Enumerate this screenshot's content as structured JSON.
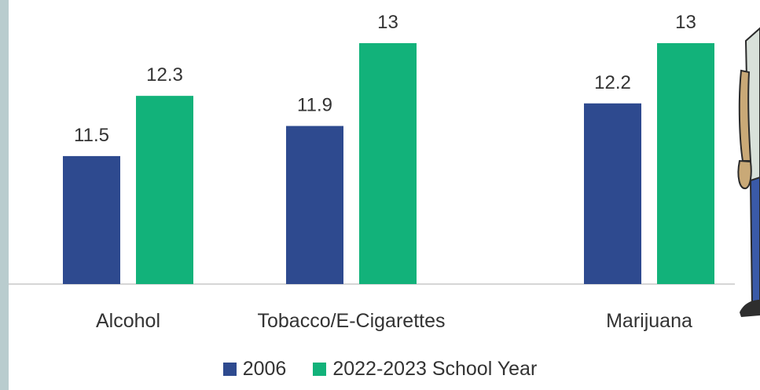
{
  "chart_data": {
    "type": "bar",
    "categories": [
      "Alcohol",
      "Tobacco/E-Cigarettes",
      "Marijuana"
    ],
    "series": [
      {
        "name": "2006",
        "values": [
          11.5,
          11.9,
          12.2
        ],
        "color": "#2e4a8f"
      },
      {
        "name": "2022-2023 School Year",
        "values": [
          12.3,
          13,
          13
        ],
        "color": "#12b27a"
      }
    ],
    "data_labels": [
      [
        "11.5",
        "11.9",
        "12.2"
      ],
      [
        "12.3",
        "13",
        "13"
      ]
    ],
    "ylim": [
      9.8,
      13
    ],
    "grid": false,
    "legend_position": "bottom",
    "title": "",
    "xlabel": "",
    "ylabel": ""
  },
  "decor": {
    "left_strip_color": "#b9ccce",
    "figure": "cartoon-person-illustration"
  }
}
